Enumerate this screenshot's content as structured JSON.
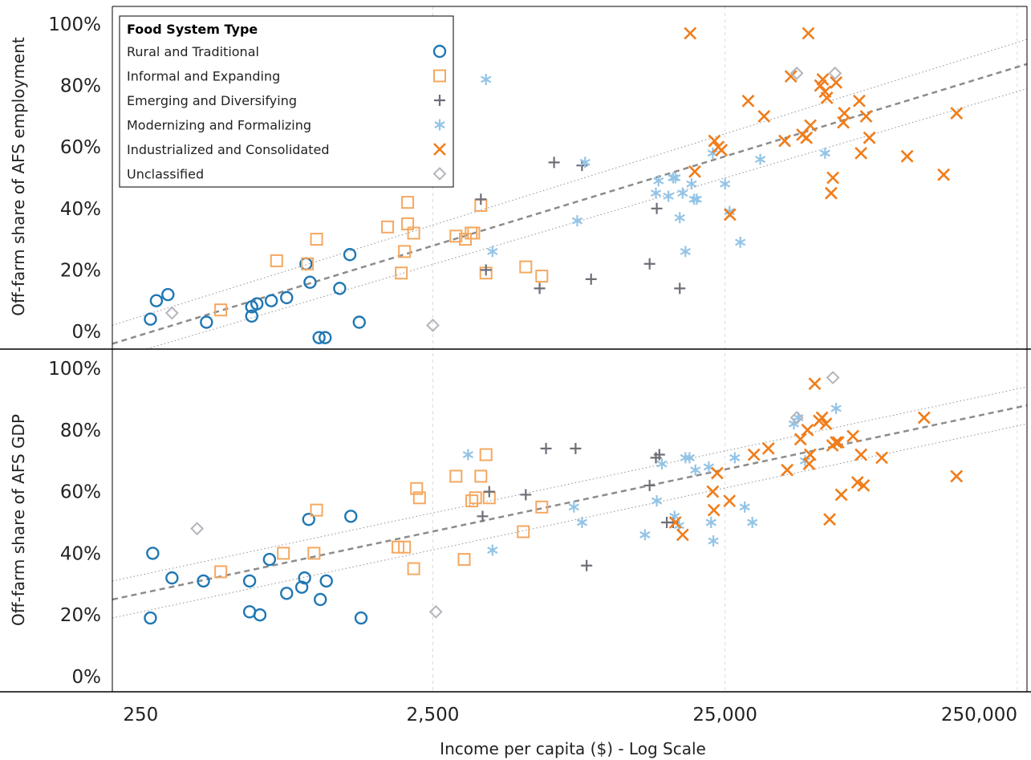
{
  "chart_data": {
    "type": "scatter",
    "x_scale": "log",
    "xlabel": "Income per capita ($) - Log Scale",
    "x_ticks": [
      250,
      2500,
      25000,
      250000
    ],
    "x_tick_labels": [
      "250",
      "2,500",
      "25,000",
      "250,000"
    ],
    "xlim": [
      200,
      270000
    ],
    "legend": {
      "title": "Food System Type",
      "placement": "top-left",
      "entries": [
        {
          "label": "Rural and Traditional",
          "marker": "circle",
          "color": "#1f77b4"
        },
        {
          "label": "Informal and Expanding",
          "marker": "square",
          "color": "#f5a860"
        },
        {
          "label": "Emerging and Diversifying",
          "marker": "plus",
          "color": "#6e6e78"
        },
        {
          "label": "Modernizing and Formalizing",
          "marker": "asterisk",
          "color": "#93c4e6"
        },
        {
          "label": "Industrialized and Consolidated",
          "marker": "x",
          "color": "#f07d1a"
        },
        {
          "label": "Unclassified",
          "marker": "diamond",
          "color": "#b4b4bc"
        }
      ]
    },
    "panels": [
      {
        "ylabel": "Off-farm share of AFS employment",
        "y_ticks": [
          0,
          20,
          40,
          60,
          80,
          100
        ],
        "y_tick_labels": [
          "0%",
          "20%",
          "40%",
          "60%",
          "80%",
          "100%"
        ],
        "ylim": [
          -5,
          105
        ],
        "trend": [
          {
            "x": 200,
            "y": -4
          },
          {
            "x": 270000,
            "y": 87
          }
        ],
        "band_upper": [
          {
            "x": 200,
            "y": 2
          },
          {
            "x": 270000,
            "y": 95
          }
        ],
        "band_lower": [
          {
            "x": 200,
            "y": -9
          },
          {
            "x": 270000,
            "y": 79
          }
        ],
        "series": [
          {
            "name": "Rural and Traditional",
            "points": [
              [
                270,
                4
              ],
              [
                283,
                10
              ],
              [
                310,
                12
              ],
              [
                420,
                3
              ],
              [
                600,
                5
              ],
              [
                600,
                8
              ],
              [
                625,
                9
              ],
              [
                700,
                10
              ],
              [
                790,
                11
              ],
              [
                920,
                22
              ],
              [
                950,
                16
              ],
              [
                1020,
                -2
              ],
              [
                1070,
                -2
              ],
              [
                1200,
                14
              ],
              [
                1300,
                25
              ],
              [
                1400,
                3
              ]
            ]
          },
          {
            "name": "Informal and Expanding",
            "points": [
              [
                470,
                7
              ],
              [
                730,
                23
              ],
              [
                930,
                22
              ],
              [
                1000,
                30
              ],
              [
                1750,
                34
              ],
              [
                1950,
                19
              ],
              [
                2000,
                26
              ],
              [
                2050,
                42
              ],
              [
                2050,
                35
              ],
              [
                2150,
                32
              ],
              [
                3000,
                31
              ],
              [
                3230,
                30
              ],
              [
                3380,
                32
              ],
              [
                3450,
                32
              ],
              [
                3650,
                41
              ],
              [
                3800,
                19
              ],
              [
                5200,
                21
              ],
              [
                5900,
                18
              ]
            ]
          },
          {
            "name": "Emerging and Diversifying",
            "points": [
              [
                3650,
                43
              ],
              [
                3800,
                20
              ],
              [
                5800,
                14
              ],
              [
                6500,
                55
              ],
              [
                8100,
                54
              ],
              [
                8700,
                17
              ],
              [
                13800,
                22
              ],
              [
                14600,
                40
              ],
              [
                17500,
                14
              ]
            ]
          },
          {
            "name": "Modernizing and Formalizing",
            "points": [
              [
                3800,
                82
              ],
              [
                4000,
                26
              ],
              [
                7800,
                36
              ],
              [
                8300,
                55
              ],
              [
                14500,
                45
              ],
              [
                14800,
                49
              ],
              [
                16000,
                44
              ],
              [
                16600,
                50
              ],
              [
                16900,
                50
              ],
              [
                17900,
                45
              ],
              [
                17500,
                37
              ],
              [
                18300,
                26
              ],
              [
                19200,
                48
              ],
              [
                19600,
                43
              ],
              [
                20000,
                43
              ],
              [
                22700,
                58
              ],
              [
                25000,
                48
              ],
              [
                25900,
                39
              ],
              [
                28200,
                29
              ],
              [
                33000,
                56
              ],
              [
                55000,
                58
              ]
            ]
          },
          {
            "name": "Industrialized and Consolidated",
            "points": [
              [
                19000,
                97
              ],
              [
                19700,
                52
              ],
              [
                23000,
                62
              ],
              [
                23700,
                60
              ],
              [
                24300,
                59
              ],
              [
                26000,
                38
              ],
              [
                30000,
                75
              ],
              [
                34000,
                70
              ],
              [
                40000,
                62
              ],
              [
                42000,
                83
              ],
              [
                46000,
                64
              ],
              [
                47500,
                63
              ],
              [
                48200,
                97
              ],
              [
                49000,
                67
              ],
              [
                53000,
                80
              ],
              [
                54000,
                82
              ],
              [
                55000,
                78
              ],
              [
                55800,
                76
              ],
              [
                57700,
                45
              ],
              [
                58500,
                50
              ],
              [
                60000,
                81
              ],
              [
                63500,
                68
              ],
              [
                64000,
                71
              ],
              [
                72000,
                75
              ],
              [
                73000,
                58
              ],
              [
                76000,
                70
              ],
              [
                78000,
                63
              ],
              [
                105000,
                57
              ],
              [
                140000,
                51
              ],
              [
                155000,
                71
              ]
            ]
          },
          {
            "name": "Unclassified",
            "points": [
              [
                320,
                6
              ],
              [
                2500,
                2
              ],
              [
                44000,
                84
              ],
              [
                59500,
                84
              ]
            ]
          }
        ]
      },
      {
        "ylabel": "Off-farm share of AFS GDP",
        "y_ticks": [
          0,
          20,
          40,
          60,
          80,
          100
        ],
        "y_tick_labels": [
          "0%",
          "20%",
          "40%",
          "60%",
          "80%",
          "100%"
        ],
        "ylim": [
          -4,
          104
        ],
        "trend": [
          {
            "x": 200,
            "y": 25
          },
          {
            "x": 270000,
            "y": 88
          }
        ],
        "band_upper": [
          {
            "x": 200,
            "y": 31
          },
          {
            "x": 270000,
            "y": 94
          }
        ],
        "band_lower": [
          {
            "x": 200,
            "y": 19
          },
          {
            "x": 270000,
            "y": 82
          }
        ],
        "series": [
          {
            "name": "Rural and Traditional",
            "points": [
              [
                270,
                19
              ],
              [
                275,
                40
              ],
              [
                320,
                32
              ],
              [
                410,
                31
              ],
              [
                590,
                21
              ],
              [
                590,
                31
              ],
              [
                640,
                20
              ],
              [
                690,
                38
              ],
              [
                790,
                27
              ],
              [
                890,
                29
              ],
              [
                910,
                32
              ],
              [
                940,
                51
              ],
              [
                1030,
                25
              ],
              [
                1080,
                31
              ],
              [
                1310,
                52
              ],
              [
                1420,
                19
              ]
            ]
          },
          {
            "name": "Informal and Expanding",
            "points": [
              [
                470,
                34
              ],
              [
                770,
                40
              ],
              [
                980,
                40
              ],
              [
                1000,
                54
              ],
              [
                1900,
                42
              ],
              [
                2000,
                42
              ],
              [
                2150,
                35
              ],
              [
                2200,
                61
              ],
              [
                2250,
                58
              ],
              [
                3000,
                65
              ],
              [
                3200,
                38
              ],
              [
                3400,
                57
              ],
              [
                3500,
                58
              ],
              [
                3650,
                65
              ],
              [
                3800,
                72
              ],
              [
                3900,
                58
              ],
              [
                5100,
                47
              ],
              [
                5900,
                55
              ]
            ]
          },
          {
            "name": "Emerging and Diversifying",
            "points": [
              [
                3700,
                52
              ],
              [
                3900,
                60
              ],
              [
                5200,
                59
              ],
              [
                6100,
                74
              ],
              [
                7700,
                74
              ],
              [
                8400,
                36
              ],
              [
                13800,
                62
              ],
              [
                14500,
                71
              ],
              [
                14900,
                72
              ],
              [
                15800,
                50
              ],
              [
                16600,
                50
              ]
            ]
          },
          {
            "name": "Modernizing and Formalizing",
            "points": [
              [
                3300,
                72
              ],
              [
                4000,
                41
              ],
              [
                7600,
                55
              ],
              [
                8100,
                50
              ],
              [
                13300,
                46
              ],
              [
                14600,
                57
              ],
              [
                15200,
                69
              ],
              [
                16800,
                52
              ],
              [
                17400,
                49
              ],
              [
                18300,
                71
              ],
              [
                18900,
                71
              ],
              [
                19800,
                67
              ],
              [
                22000,
                68
              ],
              [
                22400,
                50
              ],
              [
                22800,
                44
              ],
              [
                27000,
                71
              ],
              [
                29200,
                55
              ],
              [
                31000,
                50
              ],
              [
                43000,
                82
              ],
              [
                44500,
                84
              ],
              [
                47000,
                70
              ],
              [
                60000,
                87
              ]
            ]
          },
          {
            "name": "Industrialized and Consolidated",
            "points": [
              [
                16900,
                50
              ],
              [
                17900,
                46
              ],
              [
                22700,
                60
              ],
              [
                22900,
                54
              ],
              [
                23500,
                66
              ],
              [
                25900,
                57
              ],
              [
                31400,
                72
              ],
              [
                35200,
                74
              ],
              [
                40800,
                67
              ],
              [
                45300,
                77
              ],
              [
                47900,
                80
              ],
              [
                48500,
                69
              ],
              [
                48900,
                72
              ],
              [
                50700,
                95
              ],
              [
                52500,
                83
              ],
              [
                53700,
                84
              ],
              [
                55400,
                82
              ],
              [
                57000,
                51
              ],
              [
                58300,
                75
              ],
              [
                60000,
                76
              ],
              [
                61000,
                76
              ],
              [
                62500,
                59
              ],
              [
                68500,
                78
              ],
              [
                71000,
                63
              ],
              [
                73000,
                72
              ],
              [
                74500,
                62
              ],
              [
                86000,
                71
              ],
              [
                120000,
                84
              ],
              [
                155000,
                65
              ]
            ]
          },
          {
            "name": "Unclassified",
            "points": [
              [
                390,
                48
              ],
              [
                2560,
                21
              ],
              [
                44000,
                84
              ],
              [
                58500,
                97
              ]
            ]
          }
        ]
      }
    ]
  }
}
